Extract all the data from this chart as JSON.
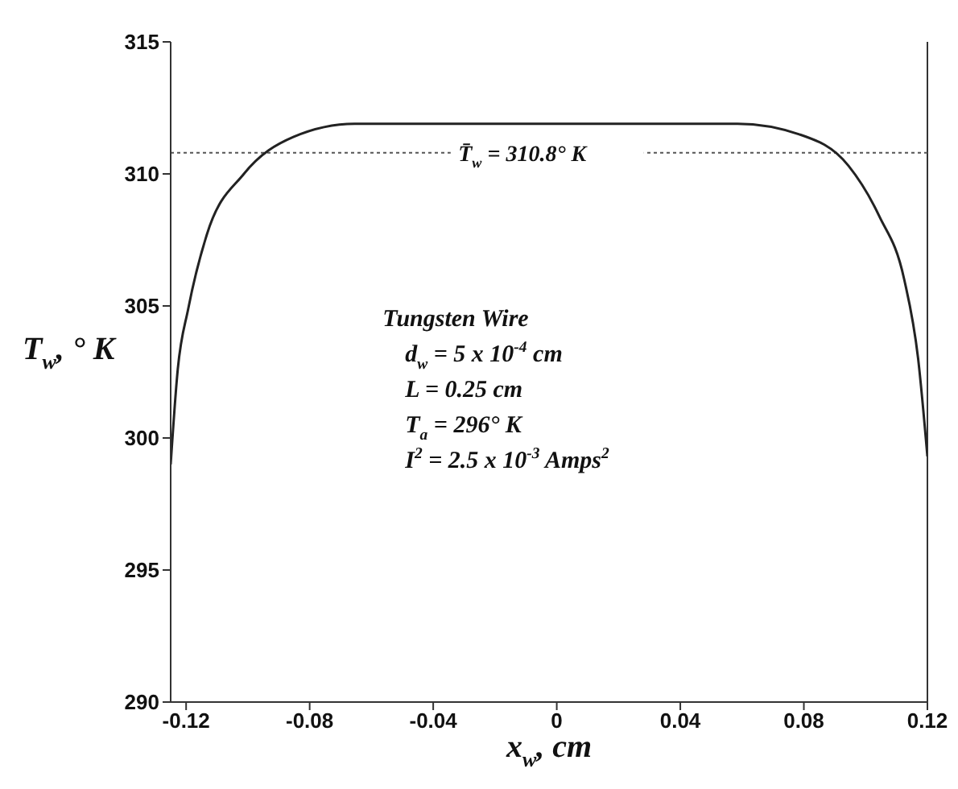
{
  "chart_data": {
    "type": "line",
    "xlabel": "x$_{w}$, cm",
    "ylabel": "T$_{w}$, ° K",
    "x": [
      -0.125,
      -0.1227,
      -0.1193,
      -0.1133,
      -0.1013,
      -0.0853,
      -0.0654,
      0,
      0.0585,
      0.0785,
      0.0945,
      0.1044,
      0.1125,
      0.117,
      0.12
    ],
    "series": [
      {
        "color": "#222222",
        "values": [
          299,
          302.6,
          304.9,
          307.7,
          310.0,
          311.4,
          311.9,
          311.9,
          311.9,
          311.5,
          310.3,
          308.4,
          306.0,
          303,
          299.3
        ]
      }
    ],
    "xlim": [
      -0.125,
      0.12
    ],
    "xticks": [
      -0.12,
      -0.08,
      -0.04,
      0,
      0.04,
      0.08,
      0.12
    ],
    "ylim": [
      290,
      315
    ],
    "yticks": [
      290,
      295,
      300,
      305,
      310,
      315
    ],
    "grid": false,
    "legend": false,
    "marker": "none",
    "line_style": "solid",
    "ref_lines": [
      {
        "axis": "y",
        "value": 310.8,
        "label": "T̄$_{w}$ = 310.8° K",
        "line_style": "dotted",
        "color": "#555555"
      }
    ],
    "annotations": [
      "Tungsten Wire",
      "d$_{w}$ = 5 x 10$^{-4}$ cm",
      "L = 0.25 cm",
      "T$_{a}$ = 296° K",
      "I$^{2}$ = 2.5 x 10$^{-3}$ Amps$^{2}$"
    ]
  }
}
